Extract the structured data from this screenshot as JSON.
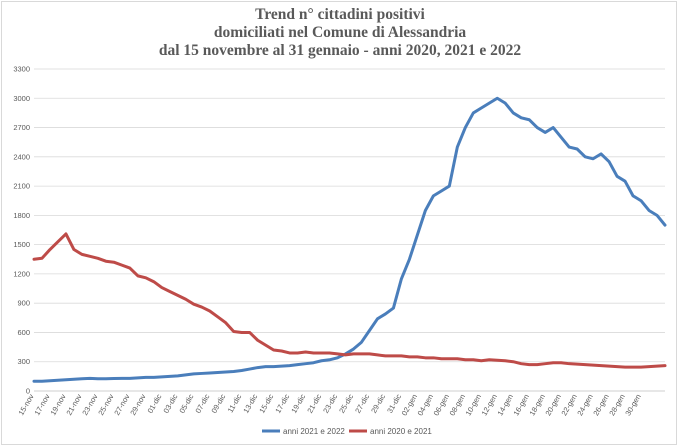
{
  "chart_data": {
    "type": "line",
    "title_lines": [
      "Trend n° cittadini positivi",
      "domiciliati nel Comune di Alessandria",
      "dal 15 novembre al 31 gennaio - anni 2020, 2021 e 2022"
    ],
    "xlabel": "",
    "ylabel": "",
    "ylim": [
      0,
      3300
    ],
    "yticks": [
      0,
      300,
      600,
      900,
      1200,
      1500,
      1800,
      2100,
      2400,
      2700,
      3000,
      3300
    ],
    "grid": true,
    "legend_position": "bottom-right",
    "xtick_labels": [
      "15-nov",
      "17-nov",
      "19-nov",
      "21-nov",
      "23-nov",
      "25-nov",
      "27-nov",
      "29-nov",
      "01-dic",
      "03-dic",
      "05-dic",
      "07-dic",
      "09-dic",
      "11-dic",
      "13-dic",
      "15-dic",
      "17-dic",
      "19-dic",
      "21-dic",
      "23-dic",
      "25-dic",
      "27-dic",
      "29-dic",
      "31-dic",
      "02-gen",
      "04-gen",
      "06-gen",
      "08-gen",
      "10-gen",
      "12-gen",
      "14-gen",
      "16-gen",
      "18-gen",
      "20-gen",
      "22-gen",
      "24-gen",
      "26-gen",
      "28-gen",
      "30-gen"
    ],
    "series": [
      {
        "name": "anni 2021 e 2022",
        "color": "#4a7ebb",
        "values": [
          100,
          100,
          105,
          110,
          115,
          120,
          125,
          130,
          125,
          125,
          128,
          130,
          130,
          135,
          140,
          140,
          145,
          150,
          155,
          165,
          175,
          180,
          185,
          190,
          195,
          200,
          210,
          225,
          240,
          250,
          250,
          255,
          260,
          270,
          280,
          290,
          310,
          320,
          340,
          380,
          430,
          500,
          620,
          740,
          790,
          850,
          1150,
          1350,
          1600,
          1850,
          2000,
          2050,
          2100,
          2500,
          2700,
          2850,
          2900,
          2950,
          3000,
          2950,
          2850,
          2800,
          2780,
          2700,
          2650,
          2700,
          2600,
          2500,
          2480,
          2400,
          2380,
          2430,
          2350,
          2200,
          2150,
          2000,
          1950,
          1850,
          1800,
          1700
        ]
      },
      {
        "name": "anni 2020 e 2021",
        "color": "#be4b48",
        "values": [
          1350,
          1360,
          1450,
          1530,
          1610,
          1450,
          1400,
          1380,
          1360,
          1330,
          1320,
          1290,
          1260,
          1180,
          1160,
          1120,
          1060,
          1020,
          980,
          940,
          890,
          860,
          820,
          760,
          700,
          610,
          600,
          600,
          520,
          470,
          420,
          410,
          390,
          390,
          400,
          390,
          390,
          390,
          380,
          370,
          380,
          380,
          380,
          370,
          360,
          360,
          360,
          350,
          350,
          340,
          340,
          330,
          330,
          330,
          320,
          320,
          310,
          320,
          315,
          310,
          300,
          280,
          270,
          270,
          280,
          290,
          290,
          280,
          275,
          270,
          265,
          260,
          255,
          250,
          245,
          245,
          245,
          250,
          255,
          260
        ]
      }
    ]
  }
}
